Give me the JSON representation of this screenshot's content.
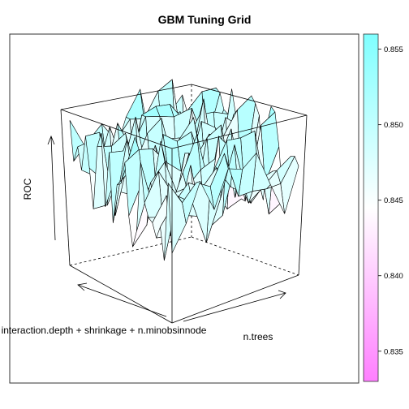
{
  "chart_data": {
    "type": "surface3d",
    "title": "GBM Tuning Grid",
    "xlabel": "interaction.depth + shrinkage + n.minobsinnode",
    "ylabel": "n.trees",
    "zlabel": "ROC",
    "zlim": [
      0.833,
      0.856
    ],
    "colorkey": {
      "position": "right",
      "ticks": [
        0.835,
        0.84,
        0.845,
        0.85,
        0.855
      ],
      "tick_labels": [
        "0.835",
        "0.840",
        "0.845",
        "0.850",
        "0.855"
      ],
      "colors": {
        "low": "#ff7fff",
        "mid": "#ffffff",
        "high": "#7fffff"
      }
    },
    "grid_size": {
      "nx": 27,
      "ny": 10
    },
    "surface": {
      "base": 0.849,
      "amplitude": 0.006,
      "floor": 0.8405,
      "seed": 7
    }
  }
}
